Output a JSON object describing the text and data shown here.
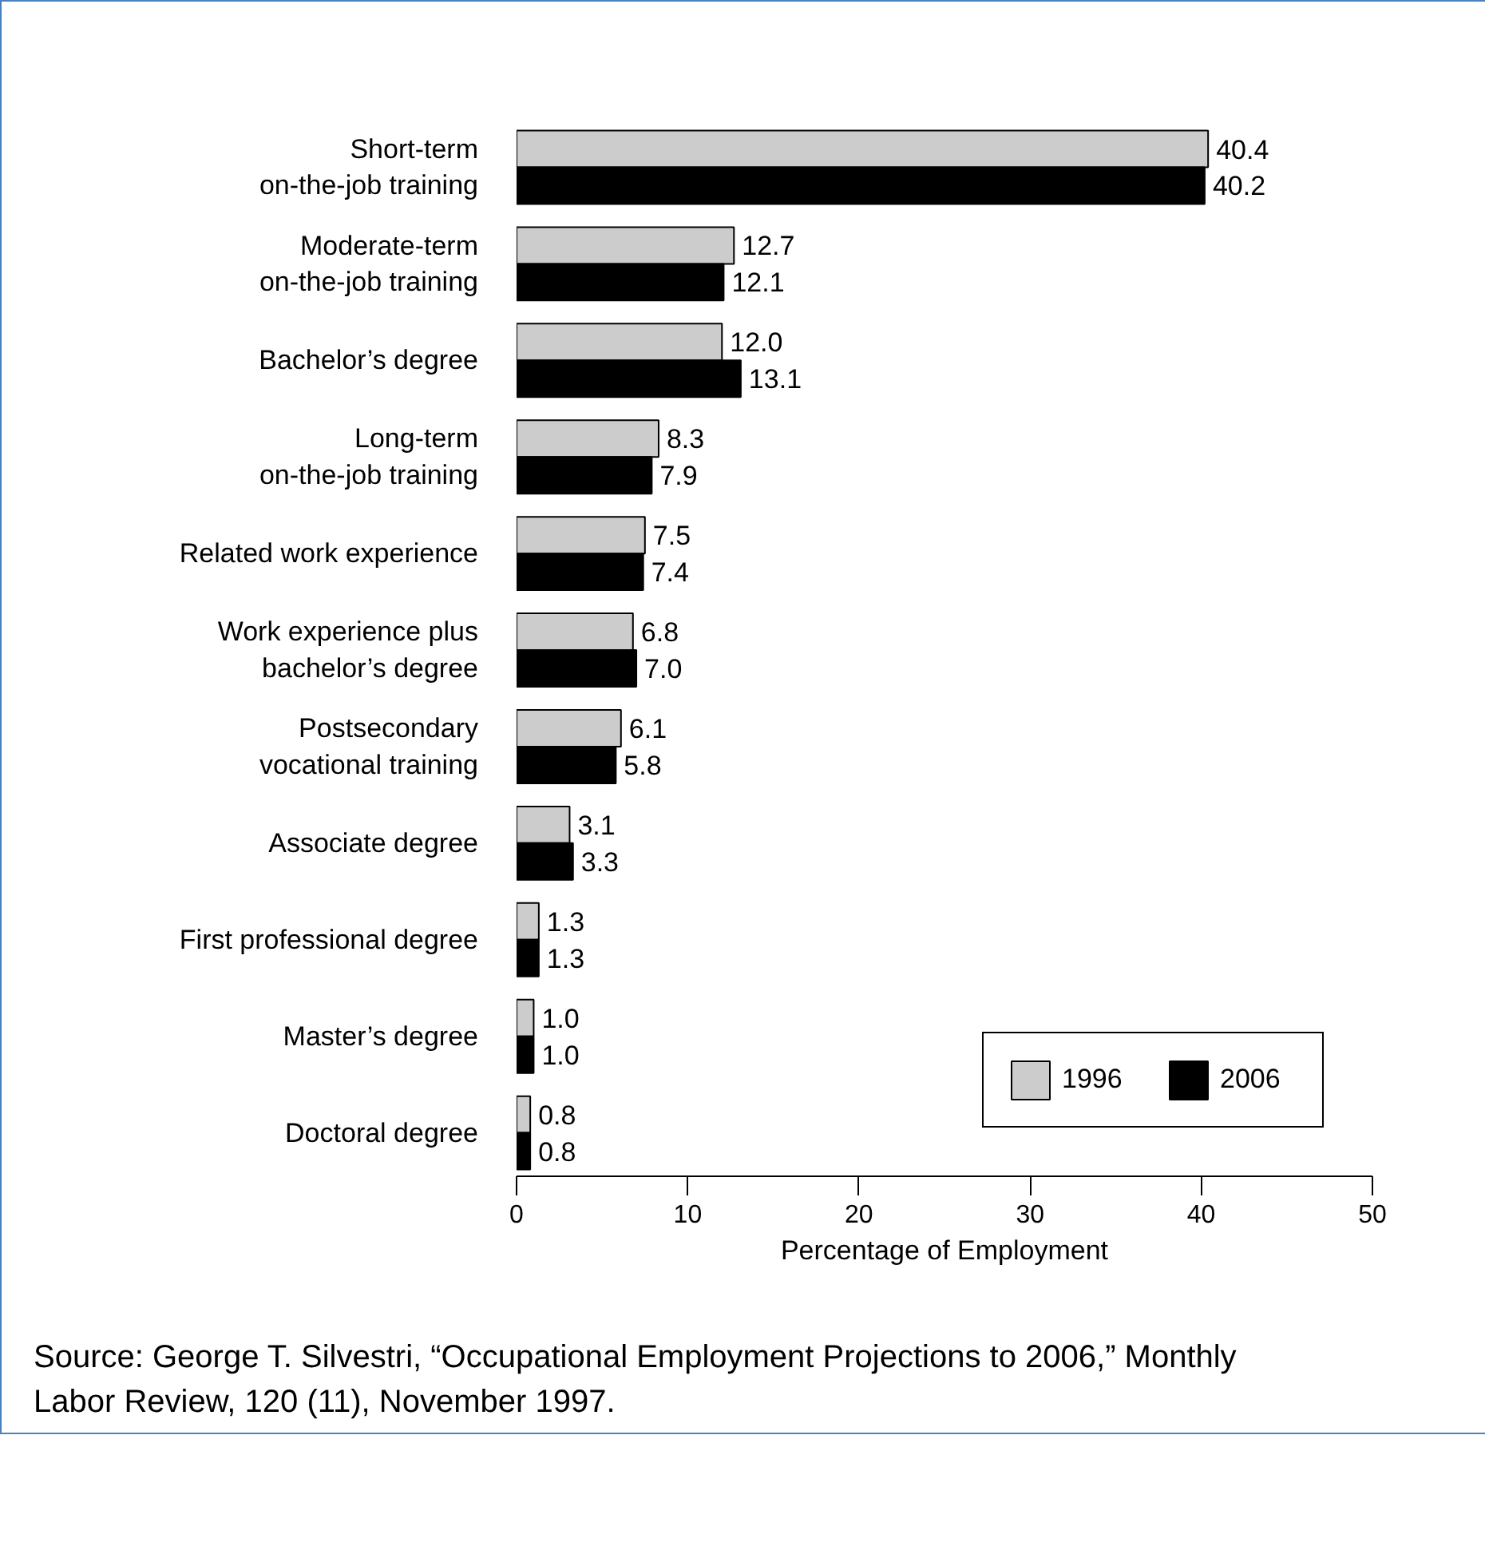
{
  "chart_data": {
    "type": "bar",
    "orientation": "horizontal",
    "xlabel": "Percentage of Employment",
    "categories": [
      "Short-term\non-the-job training",
      "Moderate-term\non-the-job training",
      "Bachelor’s degree",
      "Long-term\non-the-job training",
      "Related work experience",
      "Work experience plus\nbachelor’s degree",
      "Postsecondary\nvocational training",
      "Associate degree",
      "First professional degree",
      "Master’s degree",
      "Doctoral degree"
    ],
    "series": [
      {
        "name": "1996",
        "color": "#cccccc",
        "values": [
          40.4,
          12.7,
          12.0,
          8.3,
          7.5,
          6.8,
          6.1,
          3.1,
          1.3,
          1.0,
          0.8
        ]
      },
      {
        "name": "2006",
        "color": "#000000",
        "values": [
          40.2,
          12.1,
          13.1,
          7.9,
          7.4,
          7.0,
          5.8,
          3.3,
          1.3,
          1.0,
          0.8
        ]
      }
    ],
    "value_labels": [
      [
        "40.4",
        "12.7",
        "12.0",
        "8.3",
        "7.5",
        "6.8",
        "6.1",
        "3.1",
        "1.3",
        "1.0",
        "0.8"
      ],
      [
        "40.2",
        "12.1",
        "13.1",
        "7.9",
        "7.4",
        "7.0",
        "5.8",
        "3.3",
        "1.3",
        "1.0",
        "0.8"
      ]
    ],
    "xlim": [
      0,
      50
    ],
    "xticks": [
      0,
      10,
      20,
      30,
      40,
      50
    ],
    "grid": false,
    "legend": "bottom right",
    "annotations": [
      "Source: George T. Silvestri, “Occupational Employment Projections to 2006,” Monthly Labor Review, 120 (11), November 1997."
    ]
  }
}
